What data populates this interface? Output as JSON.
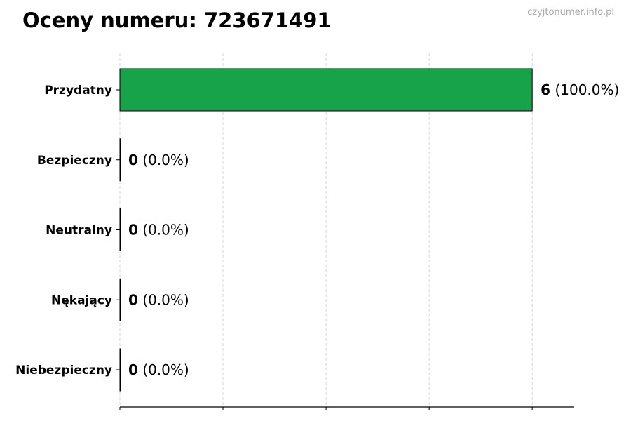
{
  "title": "Oceny numeru: 723671491",
  "watermark": "czyjtonumer.info.pl",
  "chart_data": {
    "type": "bar",
    "orientation": "horizontal",
    "title": "Oceny numeru: 723671491",
    "categories": [
      "Przydatny",
      "Bezpieczny",
      "Neutralny",
      "Nękający",
      "Niebezpieczny"
    ],
    "values": [
      6,
      0,
      0,
      0,
      0
    ],
    "value_labels": [
      "6",
      "0",
      "0",
      "0",
      "0"
    ],
    "percent_labels": [
      "(100.0%)",
      "(0.0%)",
      "(0.0%)",
      "(0.0%)",
      "(0.0%)"
    ],
    "bar_color": "#16a34a",
    "xlim": [
      0,
      6.6
    ],
    "xticks": [
      0,
      1.5,
      3,
      4.5,
      6
    ],
    "xtick_labels_shown": false,
    "grid": "x dashed",
    "legend": "none"
  }
}
